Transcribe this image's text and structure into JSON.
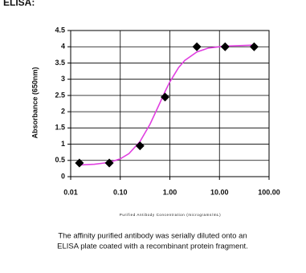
{
  "chart_data": {
    "type": "scatter",
    "title": "ELISA:",
    "xlabel": "Purified Antibody Concentration (micrograms/mL)",
    "ylabel": "Absorbance (650nm)",
    "caption": [
      "The affinity purified antibody was serially diluted onto an",
      "ELISA plate coated with a recombinant protein fragment."
    ],
    "x": [
      0.015,
      0.06,
      0.25,
      0.8,
      3.5,
      13,
      50
    ],
    "values": [
      0.42,
      0.42,
      0.95,
      2.45,
      4.0,
      4.0,
      4.0
    ],
    "color": "#000000",
    "fit": {
      "x": [
        0.015,
        0.03,
        0.06,
        0.1,
        0.15,
        0.25,
        0.4,
        0.6,
        0.8,
        1,
        1.5,
        2,
        3.5,
        6,
        13,
        50
      ],
      "values": [
        0.36,
        0.38,
        0.44,
        0.55,
        0.71,
        1.08,
        1.62,
        2.2,
        2.62,
        2.92,
        3.36,
        3.58,
        3.84,
        3.96,
        4.02,
        4.05
      ],
      "color": "#e040e0"
    },
    "xlog": true,
    "xlim": [
      0.01,
      100
    ],
    "xticks": [
      0.01,
      {
        "value": 0.1,
        "label": "0.10"
      },
      {
        "value": 1,
        "label": "1.00"
      },
      {
        "value": 10,
        "label": "10.00"
      },
      {
        "value": 100,
        "label": "100.00"
      }
    ],
    "ylim": [
      0,
      4.5
    ],
    "yticks": [
      0,
      0.5,
      1,
      1.5,
      2,
      2.5,
      3,
      3.5,
      4,
      4.5
    ],
    "grid": true
  }
}
